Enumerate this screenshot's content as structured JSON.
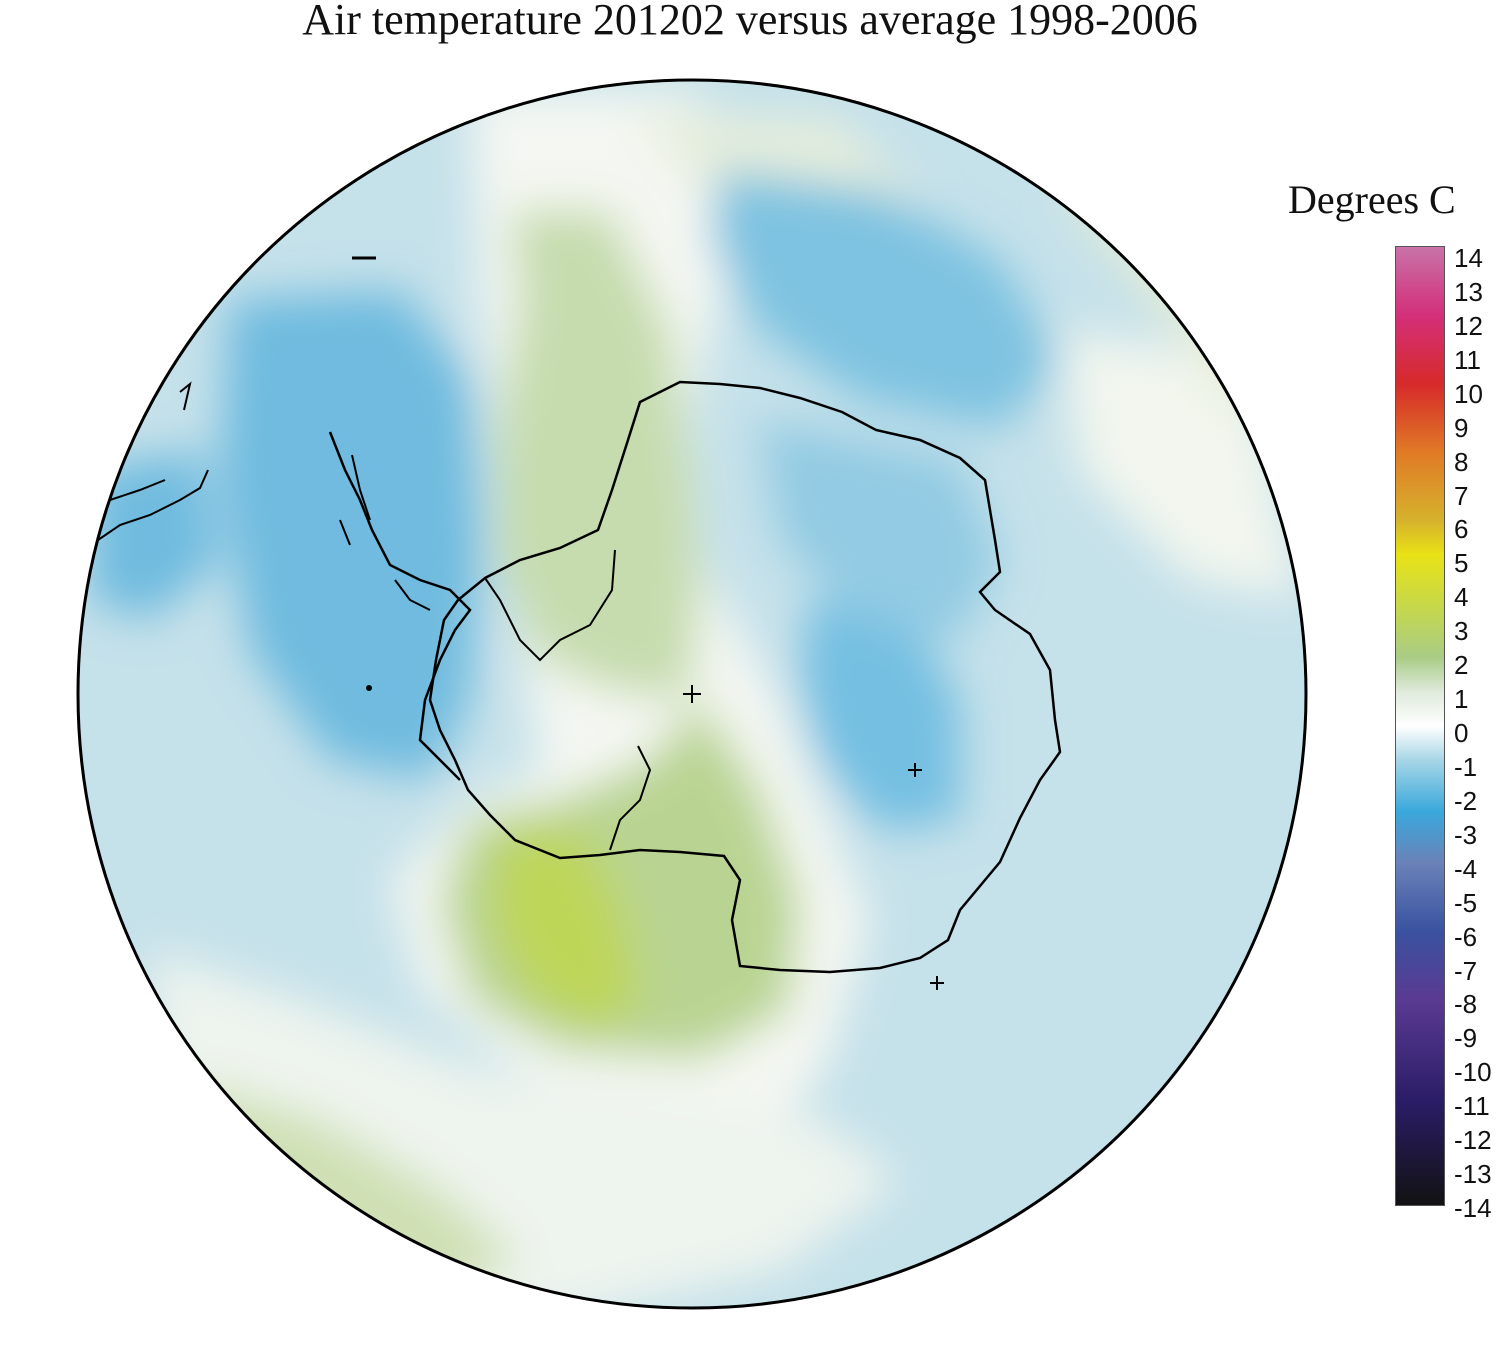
{
  "title": "Air temperature 201202 versus average 1998-2006",
  "colorbar": {
    "label": "Degrees C",
    "min": -14,
    "max": 14,
    "ticks": [
      "14",
      "13",
      "12",
      "11",
      "10",
      "9",
      "8",
      "7",
      "6",
      "5",
      "4",
      "3",
      "2",
      "1",
      "0",
      "-1",
      "-2",
      "-3",
      "-4",
      "-5",
      "-6",
      "-7",
      "-8",
      "-9",
      "-10",
      "-11",
      "-12",
      "-13",
      "-14"
    ],
    "colors": [
      {
        "value": 14,
        "color": "#c872a8"
      },
      {
        "value": 12,
        "color": "#d42f7a"
      },
      {
        "value": 10,
        "color": "#d62a2a"
      },
      {
        "value": 8,
        "color": "#e07a26"
      },
      {
        "value": 6,
        "color": "#d6b22c"
      },
      {
        "value": 5,
        "color": "#e8e216"
      },
      {
        "value": 3.5,
        "color": "#c6d84a"
      },
      {
        "value": 2,
        "color": "#a9cc86"
      },
      {
        "value": 1,
        "color": "#dfeadc"
      },
      {
        "value": 0,
        "color": "#ffffff"
      },
      {
        "value": -1,
        "color": "#a7d6e6"
      },
      {
        "value": -2.5,
        "color": "#3aa8dc"
      },
      {
        "value": -4,
        "color": "#6a82b8"
      },
      {
        "value": -6,
        "color": "#3a52a0"
      },
      {
        "value": -8,
        "color": "#5a3a92"
      },
      {
        "value": -11,
        "color": "#2a1c66"
      },
      {
        "value": -14,
        "color": "#121212"
      }
    ]
  },
  "map": {
    "projection": "south polar stereographic",
    "ocean_color": "#c8e2ec",
    "coastline_color": "#000000",
    "markers": [
      "+",
      "+",
      "+"
    ]
  }
}
